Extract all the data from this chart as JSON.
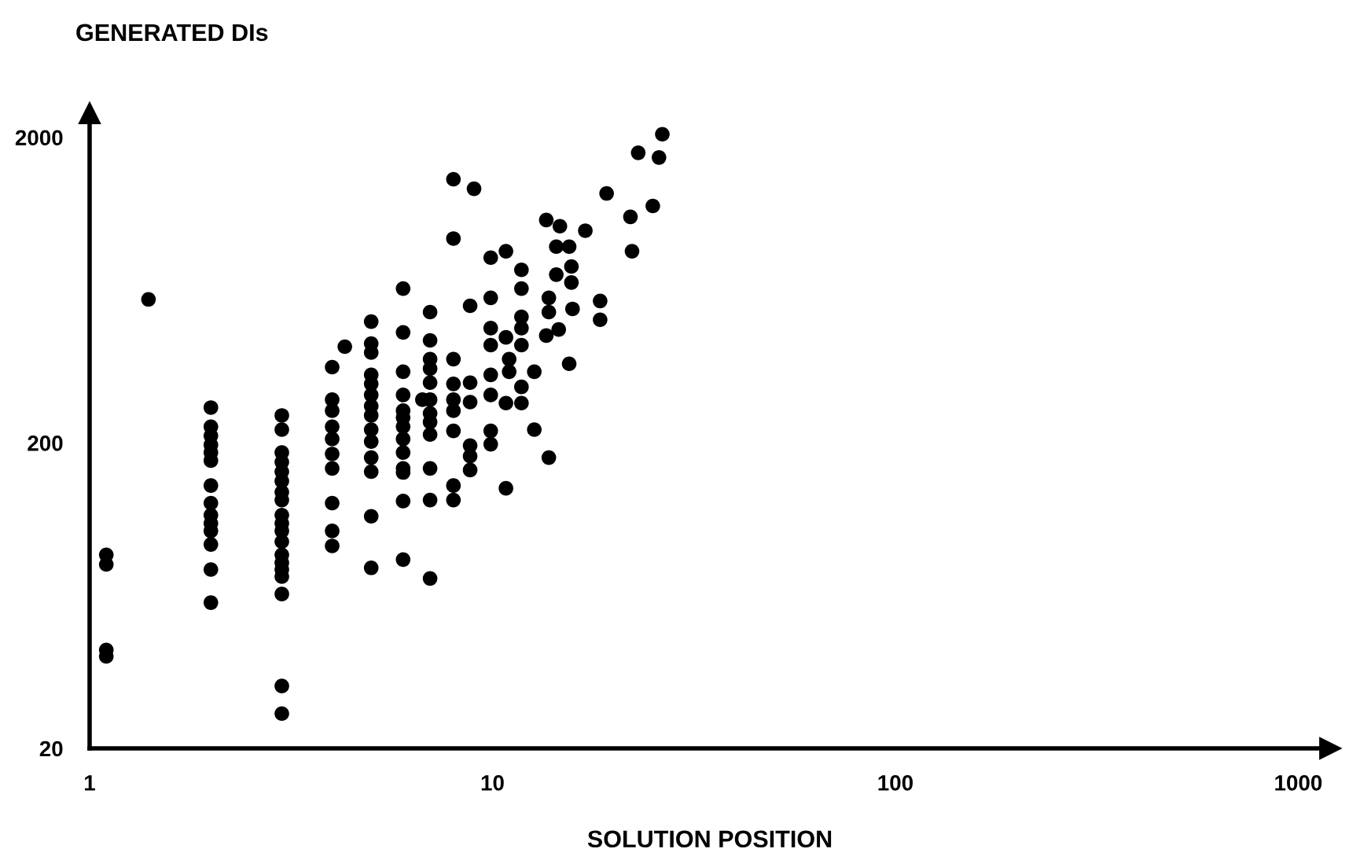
{
  "chart_data": {
    "type": "scatter",
    "xlabel": "SOLUTION POSITION",
    "ylabel": "GENERATED DIs",
    "log": "xy",
    "xlim": [
      1,
      1200
    ],
    "ylim": [
      20,
      2400
    ],
    "xticks": [
      1,
      10,
      100,
      1000
    ],
    "yticks": [
      20,
      200,
      2000
    ],
    "marker": "circle",
    "grid": false,
    "series": [
      {
        "color": "#000000",
        "x": [
          1.1,
          1.1,
          1.1,
          1.1,
          1.4,
          2,
          2,
          2,
          2,
          2,
          2,
          2,
          2,
          2,
          2,
          2,
          2,
          2,
          2,
          3,
          3,
          3,
          3,
          3,
          3,
          3,
          3,
          3,
          3,
          3,
          3,
          3,
          3,
          3,
          3,
          3,
          3,
          3,
          4,
          4,
          4,
          4,
          4,
          4,
          4,
          4,
          4,
          4,
          4.3,
          5,
          5,
          5,
          5,
          5,
          5,
          5,
          5,
          5,
          5,
          5,
          5,
          5,
          5,
          6,
          6,
          6,
          6,
          6,
          6,
          6,
          6,
          6,
          6,
          6,
          6,
          6,
          7,
          7,
          7,
          7,
          7,
          7,
          7,
          7,
          7,
          7,
          7,
          7,
          6.7,
          8,
          8,
          9,
          8,
          8,
          8,
          8,
          8,
          8,
          8,
          8.8,
          8.8,
          8.8,
          8.8,
          8.8,
          8.8,
          9.9,
          9.9,
          9.9,
          9.9,
          9.9,
          9.9,
          9.9,
          9.9,
          10.8,
          10.8,
          10.8,
          10.8,
          11.0,
          11.0,
          11.8,
          11.8,
          11.8,
          11.8,
          11.8,
          11.8,
          11.8,
          12.7,
          12.7,
          13.6,
          13.6,
          13.8,
          13.8,
          13.8,
          14.4,
          14.6,
          14.7,
          14.4,
          15.5,
          15.5,
          15.7,
          15.7,
          15.8,
          17.0,
          18.5,
          18.5,
          19.2,
          22.0,
          22.2,
          23,
          25,
          25.9,
          26.4
        ],
        "values": [
          86,
          80,
          42,
          40,
          590,
          261,
          226,
          211,
          197,
          186,
          175,
          145,
          127,
          116,
          109,
          103,
          93,
          77,
          60,
          246,
          221,
          186,
          173,
          161,
          150,
          138,
          130,
          116,
          109,
          103,
          95,
          86,
          81,
          77,
          73,
          64,
          32,
          26,
          354,
          277,
          255,
          226,
          206,
          184,
          165,
          127,
          103,
          92,
          413,
          499,
          423,
          395,
          334,
          312,
          287,
          264,
          246,
          221,
          202,
          179,
          161,
          115,
          78,
          640,
          460,
          342,
          287,
          255,
          242,
          226,
          206,
          186,
          165,
          160,
          129,
          83,
          536,
          433,
          376,
          350,
          315,
          277,
          250,
          234,
          213,
          165,
          130,
          72,
          277,
          1459,
          933,
          1358,
          376,
          312,
          277,
          255,
          219,
          145,
          130,
          562,
          315,
          272,
          196,
          181,
          163,
          597,
          808,
          475,
          418,
          334,
          287,
          219,
          198,
          848,
          443,
          270,
          142,
          376,
          342,
          737,
          640,
          517,
          475,
          418,
          305,
          270,
          342,
          221,
          1073,
          449,
          179,
          597,
          536,
          878,
          470,
          1024,
          711,
          878,
          363,
          756,
          670,
          549,
          990,
          583,
          506,
          1311,
          1099,
          848,
          1781,
          1193,
          1719,
          2048
        ]
      }
    ]
  }
}
